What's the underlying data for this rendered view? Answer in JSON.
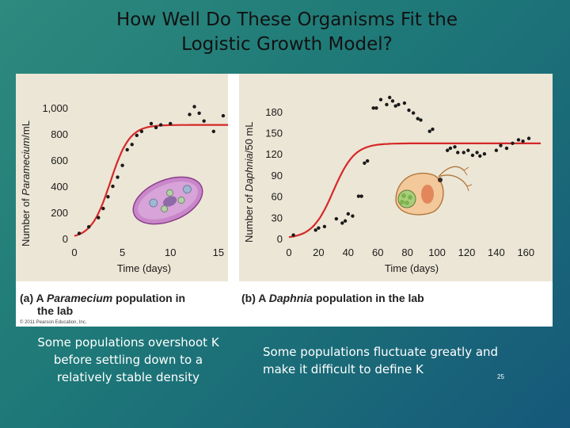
{
  "slide": {
    "title_line1": "How Well Do These Organisms Fit the",
    "title_line2": "Logistic Growth Model?",
    "caption_left": [
      "Some populations overshoot K",
      "before settling down to a",
      "relatively stable density"
    ],
    "caption_right": [
      "Some populations fluctuate greatly and",
      "make it difficult to define K"
    ],
    "slide_number": "25"
  },
  "figure": {
    "panel_a_label_1": "(a) A ",
    "panel_a_label_italic": "Paramecium",
    "panel_a_label_2": " population in",
    "panel_a_label_3": "the lab",
    "panel_b_label_1": "(b) A ",
    "panel_b_label_italic": "Daphnia",
    "panel_b_label_2": " population in the lab",
    "copyright": "© 2011 Pearson Education, Inc.",
    "colors": {
      "plot_bg": "#ece6d6",
      "curve": "#d62828",
      "points": "#1a1a1a",
      "axis_text": "#1a1a1a"
    }
  },
  "chart_data": [
    {
      "type": "scatter",
      "title": "Paramecium",
      "xlabel": "Time (days)",
      "ylabel_prefix": "Number of ",
      "ylabel_italic": "Paramecium",
      "ylabel_suffix": "/mL",
      "xlim": [
        0,
        16
      ],
      "ylim": [
        0,
        1080
      ],
      "xticks": [
        0,
        5,
        10,
        15
      ],
      "xtick_labels": [
        "0",
        "5",
        "10",
        "15"
      ],
      "yticks": [
        0,
        200,
        400,
        600,
        800,
        1000
      ],
      "ytick_labels": [
        "0",
        "200",
        "400",
        "600",
        "800",
        "1,000"
      ],
      "points": [
        [
          0.5,
          40
        ],
        [
          1.5,
          90
        ],
        [
          2.5,
          160
        ],
        [
          3,
          230
        ],
        [
          3.5,
          320
        ],
        [
          4,
          400
        ],
        [
          4.5,
          470
        ],
        [
          5,
          560
        ],
        [
          5.5,
          680
        ],
        [
          6,
          720
        ],
        [
          6.5,
          790
        ],
        [
          7,
          820
        ],
        [
          8,
          880
        ],
        [
          8.5,
          850
        ],
        [
          9,
          870
        ],
        [
          10,
          880
        ],
        [
          12,
          950
        ],
        [
          12.5,
          1010
        ],
        [
          13,
          960
        ],
        [
          13.5,
          900
        ],
        [
          14.5,
          820
        ],
        [
          15.5,
          940
        ]
      ],
      "logistic": {
        "K": 870,
        "r": 1.0,
        "N0": 20,
        "x_end": 16
      }
    },
    {
      "type": "scatter",
      "title": "Daphnia",
      "xlabel": "Time (days)",
      "ylabel_prefix": "Number of ",
      "ylabel_italic": "Daphnia",
      "ylabel_suffix": "/50 mL",
      "xlim": [
        0,
        170
      ],
      "ylim": [
        0,
        200
      ],
      "xticks": [
        0,
        20,
        40,
        60,
        80,
        100,
        120,
        140,
        160
      ],
      "xtick_labels": [
        "0",
        "20",
        "40",
        "60",
        "80",
        "100",
        "120",
        "140",
        "160"
      ],
      "yticks": [
        0,
        30,
        60,
        90,
        120,
        150,
        180
      ],
      "ytick_labels": [
        "0",
        "30",
        "60",
        "90",
        "120",
        "150",
        "180"
      ],
      "points": [
        [
          3,
          5
        ],
        [
          18,
          12
        ],
        [
          20,
          15
        ],
        [
          24,
          17
        ],
        [
          32,
          28
        ],
        [
          36,
          22
        ],
        [
          38,
          25
        ],
        [
          40,
          35
        ],
        [
          43,
          32
        ],
        [
          47,
          60
        ],
        [
          49,
          60
        ],
        [
          51,
          107
        ],
        [
          53,
          110
        ],
        [
          57,
          185
        ],
        [
          59,
          185
        ],
        [
          62,
          197
        ],
        [
          66,
          190
        ],
        [
          68,
          200
        ],
        [
          70,
          195
        ],
        [
          72,
          188
        ],
        [
          74,
          190
        ],
        [
          78,
          192
        ],
        [
          81,
          182
        ],
        [
          84,
          178
        ],
        [
          87,
          170
        ],
        [
          89,
          168
        ],
        [
          95,
          152
        ],
        [
          97,
          155
        ],
        [
          107,
          125
        ],
        [
          109,
          128
        ],
        [
          112,
          130
        ],
        [
          114,
          122
        ],
        [
          118,
          122
        ],
        [
          121,
          125
        ],
        [
          124,
          118
        ],
        [
          127,
          122
        ],
        [
          129,
          117
        ],
        [
          132,
          120
        ],
        [
          140,
          125
        ],
        [
          143,
          132
        ],
        [
          147,
          128
        ],
        [
          151,
          135
        ],
        [
          155,
          140
        ],
        [
          158,
          138
        ],
        [
          162,
          142
        ]
      ],
      "logistic": {
        "K": 135,
        "r": 0.14,
        "N0": 2,
        "x_end": 170
      }
    }
  ]
}
